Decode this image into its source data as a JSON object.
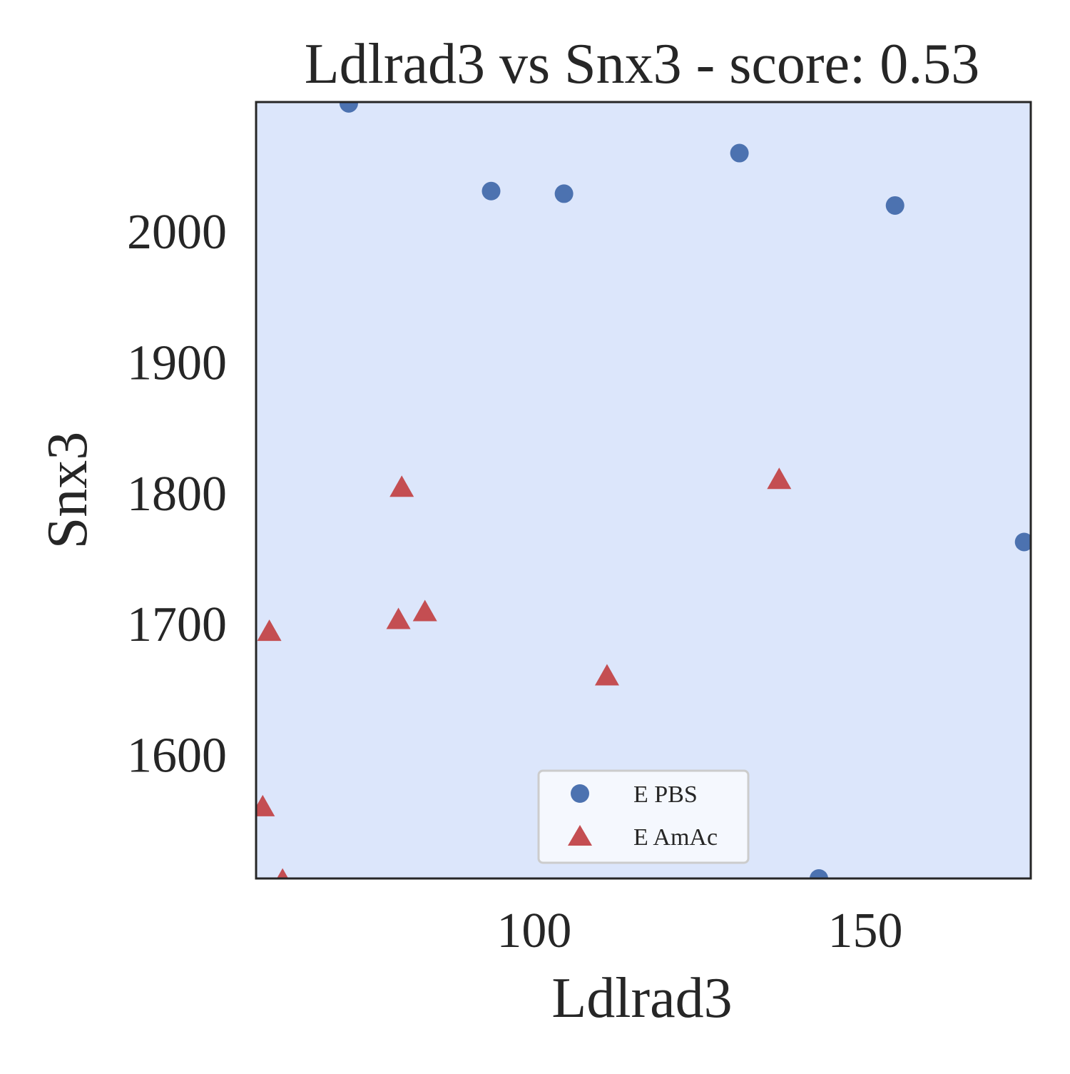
{
  "chart_data": {
    "type": "scatter",
    "title": "Ldlrad3 vs Snx3 - score: 0.53",
    "xlabel": "Ldlrad3",
    "ylabel": "Snx3",
    "xlim": [
      58,
      175
    ],
    "ylim": [
      1505,
      2098
    ],
    "xticks": [
      100,
      150
    ],
    "yticks": [
      1600,
      1700,
      1800,
      1900,
      2000
    ],
    "grid": false,
    "legend_position": "lower center",
    "background_color": "#dce6fb",
    "series": [
      {
        "name": "E PBS",
        "marker": "circle",
        "color": "#4c72b0",
        "points": [
          {
            "x": 72,
            "y": 2097
          },
          {
            "x": 93.5,
            "y": 2030
          },
          {
            "x": 104.5,
            "y": 2028
          },
          {
            "x": 131,
            "y": 2059
          },
          {
            "x": 154.5,
            "y": 2019
          },
          {
            "x": 174,
            "y": 1762
          },
          {
            "x": 143,
            "y": 1505
          }
        ]
      },
      {
        "name": "E AmAc",
        "marker": "triangle",
        "color": "#c44e52",
        "points": [
          {
            "x": 80,
            "y": 1803
          },
          {
            "x": 137,
            "y": 1809
          },
          {
            "x": 60,
            "y": 1693
          },
          {
            "x": 79.5,
            "y": 1702
          },
          {
            "x": 83.5,
            "y": 1708
          },
          {
            "x": 111,
            "y": 1659
          },
          {
            "x": 59,
            "y": 1559
          },
          {
            "x": 62,
            "y": 1503
          }
        ]
      }
    ]
  }
}
